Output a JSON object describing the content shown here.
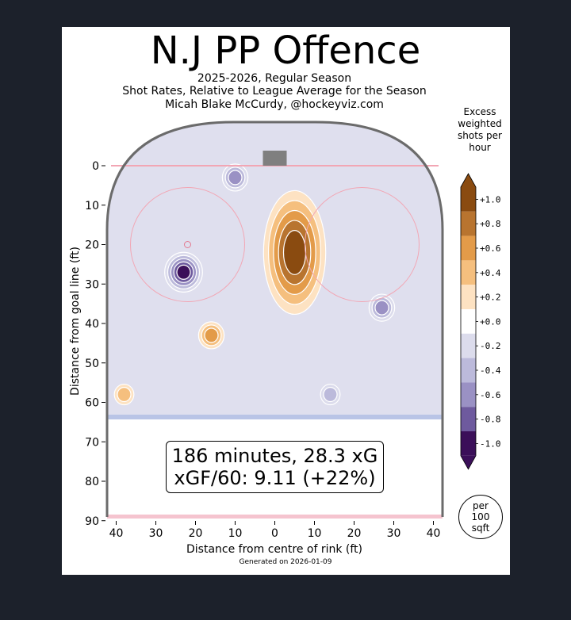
{
  "chart_data": {
    "type": "heatmap",
    "title": "N.J PP Offence",
    "subtitle_lines": [
      "2025-2026, Regular Season",
      "Shot Rates, Relative to League Average for the Season",
      "Micah Blake McCurdy, @hockeyviz.com"
    ],
    "xlabel": "Distance from centre of rink (ft)",
    "ylabel": "Distance from goal line (ft)",
    "x_ticks": [
      40,
      30,
      20,
      10,
      0,
      10,
      20,
      30,
      40
    ],
    "y_ticks": [
      0,
      10,
      20,
      30,
      40,
      50,
      60,
      70,
      80,
      90
    ],
    "xlim": [
      -42.5,
      42.5
    ],
    "ylim": [
      -11,
      90
    ],
    "colorbar": {
      "title": "Excess weighted shots per hour",
      "tick_labels": [
        "+1.0",
        "+0.8",
        "+0.6",
        "+0.4",
        "+0.2",
        "+0.0",
        "-0.2",
        "-0.4",
        "-0.6",
        "-0.8",
        "-1.0"
      ],
      "colors": [
        "#8a4b10",
        "#b8742f",
        "#e39b49",
        "#f5bf7e",
        "#fde2c2",
        "#ffffff",
        "#dcdcec",
        "#bcbadb",
        "#9a91c4",
        "#6e5a9e",
        "#3b0f59"
      ],
      "unit_label": "per 100 sqft"
    },
    "stats_lines": [
      "186 minutes, 28.3 xG",
      "xGF/60: 9.11 (+22%)"
    ],
    "regions": [
      {
        "kind": "deficit",
        "x": -23,
        "y": 27,
        "level": -1.0
      },
      {
        "kind": "deficit",
        "x": -10,
        "y": 3,
        "level": -0.6
      },
      {
        "kind": "deficit",
        "x": 27,
        "y": 36,
        "level": -0.6
      },
      {
        "kind": "deficit",
        "x": 14,
        "y": 58,
        "level": -0.4
      },
      {
        "kind": "excess",
        "x": 5,
        "y": 22,
        "level": 1.0
      },
      {
        "kind": "excess",
        "x": -16,
        "y": 43,
        "level": 0.6
      },
      {
        "kind": "excess",
        "x": -38,
        "y": 58,
        "level": 0.4
      }
    ],
    "footer": "Generated on 2026-01-09"
  }
}
